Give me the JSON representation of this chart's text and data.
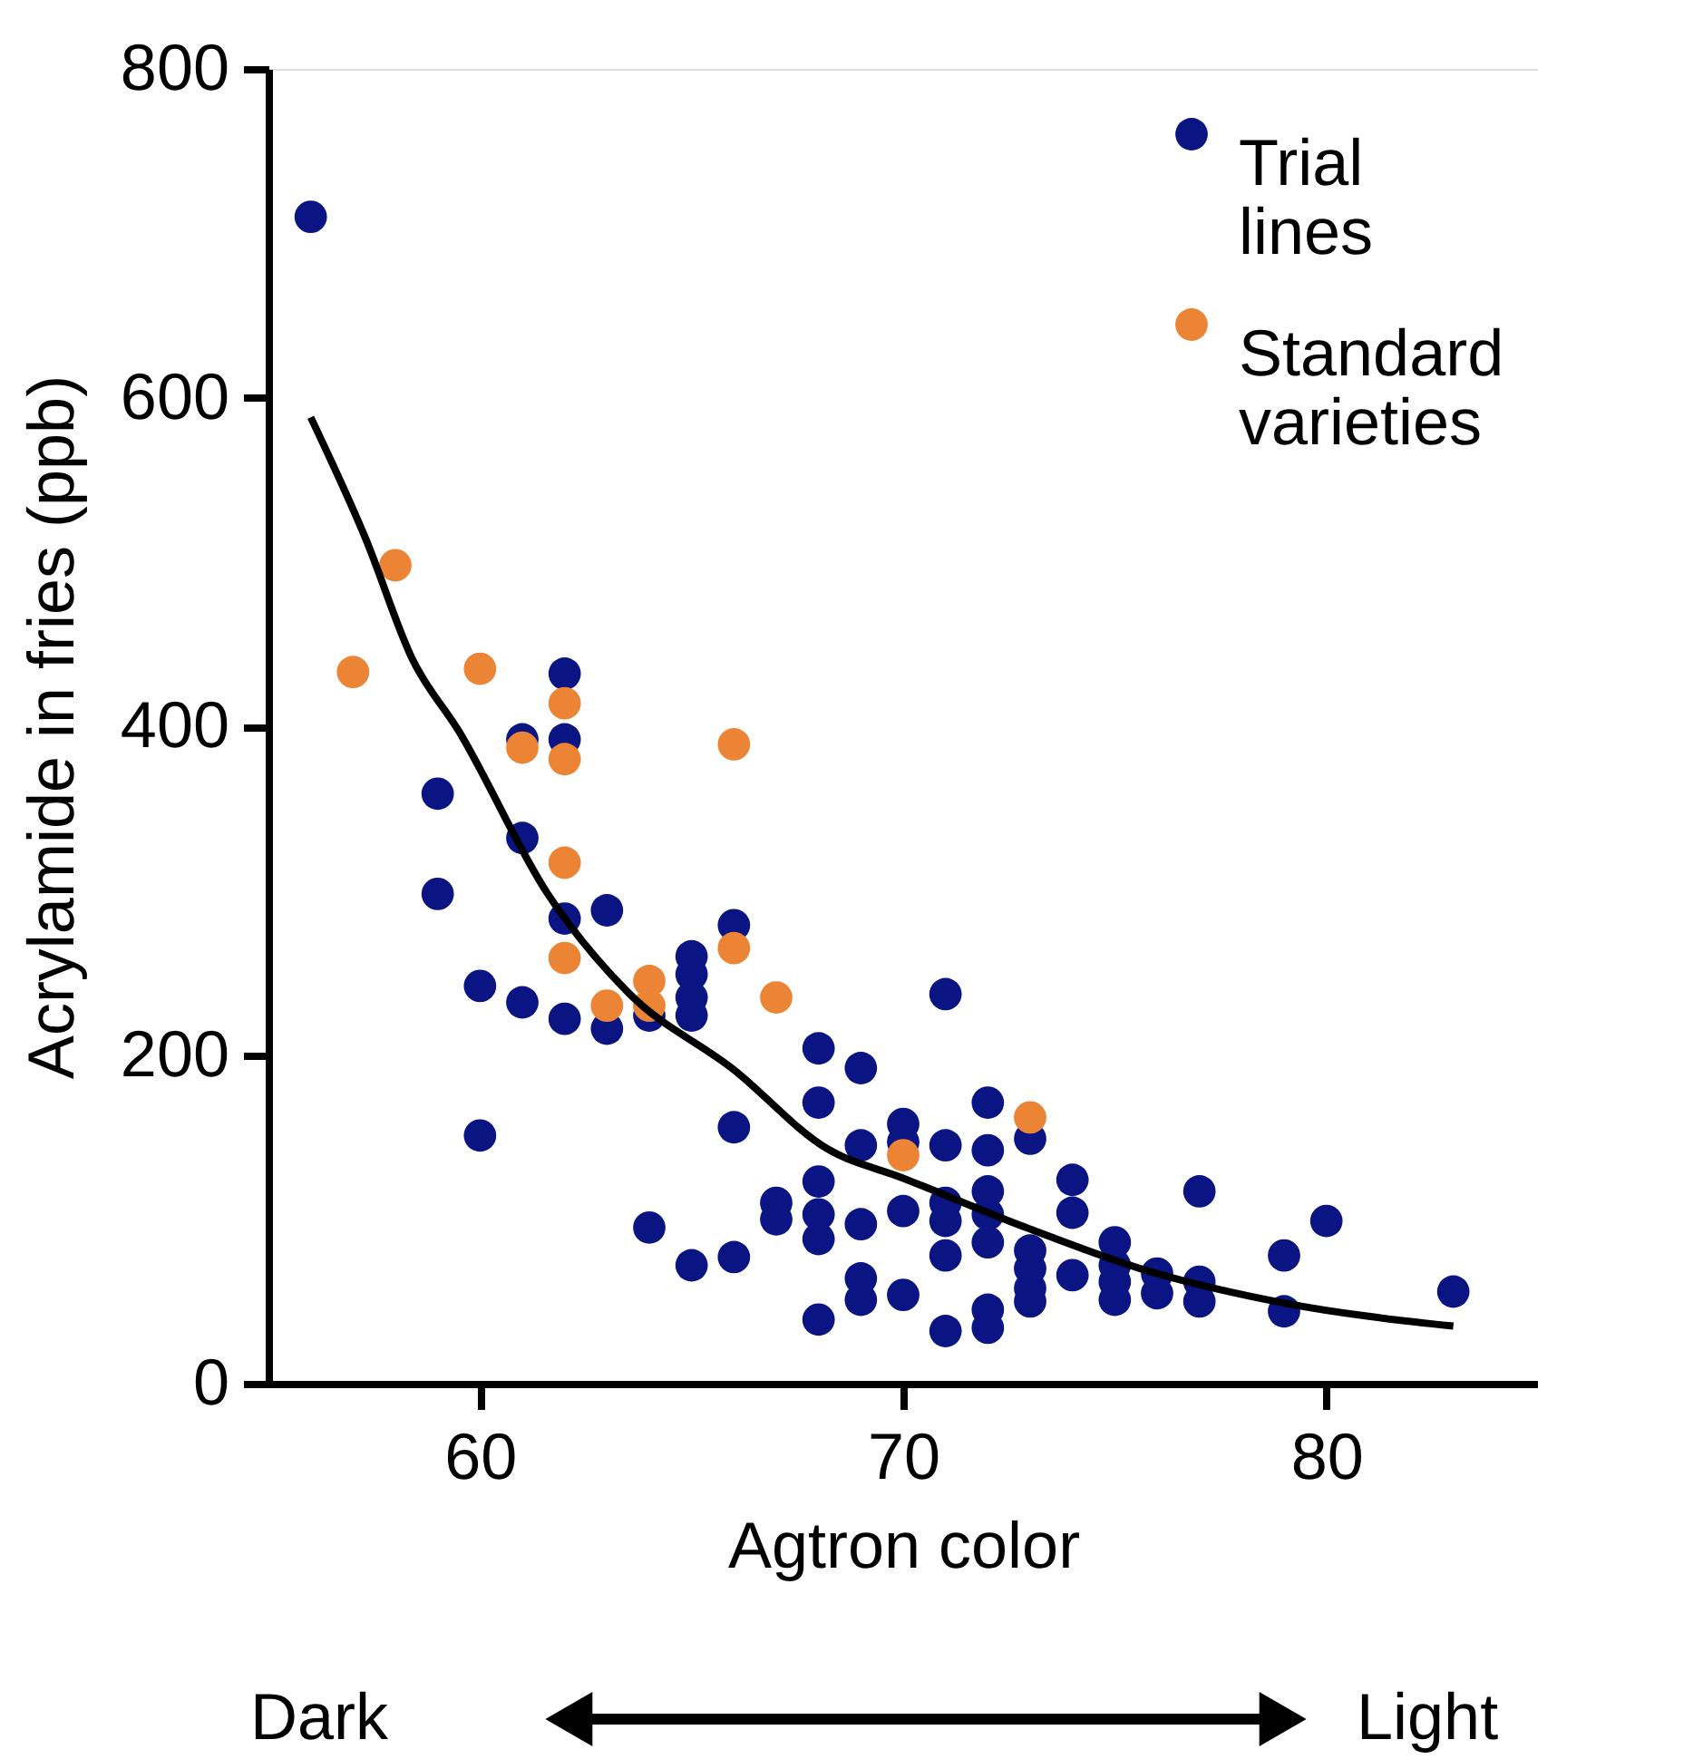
{
  "chart_data": {
    "type": "scatter",
    "xlabel": "Agtron color",
    "ylabel": "Acrylamide in fries (ppb)",
    "xlim": [
      55,
      85
    ],
    "xticks": [
      60,
      70,
      80
    ],
    "ylim": [
      0,
      800
    ],
    "yticks": [
      0,
      200,
      400,
      600,
      800
    ],
    "grid": false,
    "legend": "top right",
    "marker": "circle",
    "annotations": [
      "Dark",
      "Light"
    ],
    "series": [
      {
        "name": "Trial lines",
        "color": "#0a1483",
        "x": [
          56,
          59,
          59,
          60,
          60,
          61,
          61,
          61,
          62,
          62,
          62,
          62,
          63,
          63,
          64,
          64,
          65,
          65,
          65,
          65,
          65,
          66,
          66,
          66,
          67,
          67,
          68,
          68,
          68,
          68,
          68,
          68,
          69,
          69,
          69,
          69,
          69,
          70,
          70,
          70,
          70,
          71,
          71,
          71,
          71,
          71,
          71,
          72,
          72,
          72,
          72,
          72,
          72,
          72,
          73,
          73,
          73,
          73,
          73,
          74,
          74,
          74,
          75,
          75,
          75,
          75,
          76,
          76,
          77,
          77,
          77,
          79,
          79,
          80,
          83
        ],
        "values": [
          710,
          359,
          298,
          242,
          151,
          392,
          332,
          232,
          432,
          392,
          283,
          222,
          288,
          216,
          224,
          95,
          260,
          249,
          235,
          224,
          72,
          279,
          156,
          77,
          110,
          100,
          204,
          171,
          123,
          103,
          88,
          39,
          192,
          145,
          97,
          64,
          51,
          158,
          147,
          105,
          54,
          237,
          145,
          110,
          99,
          78,
          32,
          171,
          142,
          117,
          103,
          86,
          45,
          34,
          149,
          81,
          70,
          58,
          50,
          124,
          104,
          66,
          86,
          72,
          62,
          51,
          67,
          55,
          117,
          62,
          50,
          78,
          44,
          99,
          56
        ]
      },
      {
        "name": "Standard varieties",
        "color": "#eb8435",
        "x": [
          57,
          58,
          60,
          61,
          62,
          62,
          62,
          62,
          63,
          64,
          64,
          66,
          66,
          67,
          70,
          73
        ],
        "values": [
          433,
          498,
          435,
          387,
          414,
          380,
          317,
          259,
          230,
          245,
          230,
          389,
          265,
          235,
          139,
          162
        ]
      },
      {
        "type": "line",
        "color": "#000000",
        "marker": "none",
        "x": [
          56,
          57.3,
          58.4,
          59.5,
          61.6,
          63.5,
          66,
          68.2,
          70,
          72.9,
          75.6,
          79,
          83
        ],
        "values": [
          588,
          514,
          441,
          397,
          298,
          238,
          191,
          143,
          125,
          95,
          70,
          49,
          35
        ]
      }
    ]
  }
}
